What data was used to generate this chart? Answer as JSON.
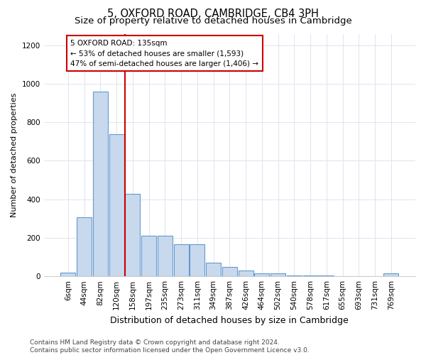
{
  "title": "5, OXFORD ROAD, CAMBRIDGE, CB4 3PH",
  "subtitle": "Size of property relative to detached houses in Cambridge",
  "xlabel": "Distribution of detached houses by size in Cambridge",
  "ylabel": "Number of detached properties",
  "categories": [
    "6sqm",
    "44sqm",
    "82sqm",
    "120sqm",
    "158sqm",
    "197sqm",
    "235sqm",
    "273sqm",
    "311sqm",
    "349sqm",
    "387sqm",
    "426sqm",
    "464sqm",
    "502sqm",
    "540sqm",
    "578sqm",
    "617sqm",
    "655sqm",
    "693sqm",
    "731sqm",
    "769sqm"
  ],
  "values": [
    20,
    305,
    960,
    740,
    430,
    210,
    210,
    165,
    165,
    70,
    50,
    32,
    15,
    15,
    5,
    5,
    5,
    2,
    2,
    2,
    15
  ],
  "bar_color": "#c8d9ee",
  "bar_edge_color": "#6699cc",
  "red_line_color": "#cc0000",
  "red_line_x": 3.5,
  "annotation_text": "5 OXFORD ROAD: 135sqm\n← 53% of detached houses are smaller (1,593)\n47% of semi-detached houses are larger (1,406) →",
  "annotation_box_facecolor": "#ffffff",
  "annotation_box_edgecolor": "#cc0000",
  "footer_line1": "Contains HM Land Registry data © Crown copyright and database right 2024.",
  "footer_line2": "Contains public sector information licensed under the Open Government Licence v3.0.",
  "ylim": [
    0,
    1260
  ],
  "yticks": [
    0,
    200,
    400,
    600,
    800,
    1000,
    1200
  ],
  "title_fontsize": 10.5,
  "subtitle_fontsize": 9.5,
  "xlabel_fontsize": 9,
  "ylabel_fontsize": 8,
  "tick_fontsize": 7.5,
  "footer_fontsize": 6.5,
  "grid_color": "#dde4ef"
}
